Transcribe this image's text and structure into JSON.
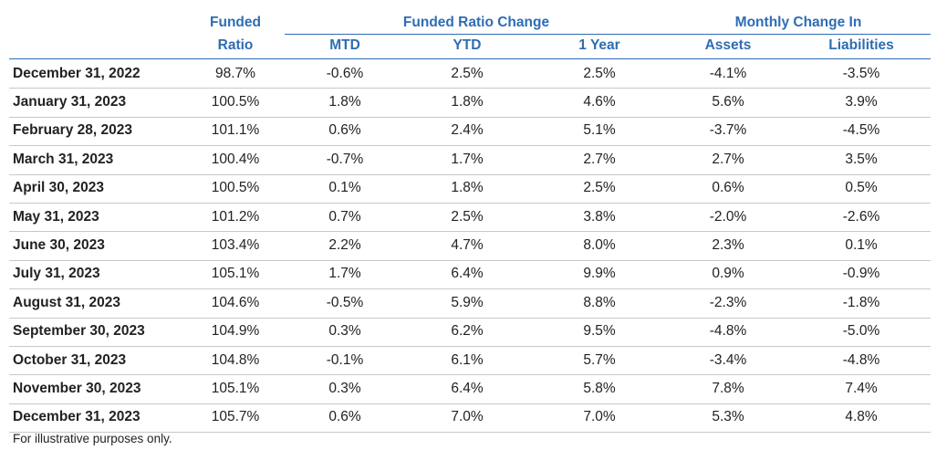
{
  "header": {
    "top": [
      "Funded",
      "Funded Ratio Change",
      "Monthly Change In"
    ],
    "sub": [
      "Ratio",
      "MTD",
      "YTD",
      "1 Year",
      "Assets",
      "Liabilities"
    ]
  },
  "table": {
    "rows": [
      [
        "December 31, 2022",
        "98.7%",
        "-0.6%",
        "2.5%",
        "2.5%",
        "-4.1%",
        "-3.5%"
      ],
      [
        "January 31, 2023",
        "100.5%",
        "1.8%",
        "1.8%",
        "4.6%",
        "5.6%",
        "3.9%"
      ],
      [
        "February 28, 2023",
        "101.1%",
        "0.6%",
        "2.4%",
        "5.1%",
        "-3.7%",
        "-4.5%"
      ],
      [
        "March 31, 2023",
        "100.4%",
        "-0.7%",
        "1.7%",
        "2.7%",
        "2.7%",
        "3.5%"
      ],
      [
        "April 30, 2023",
        "100.5%",
        "0.1%",
        "1.8%",
        "2.5%",
        "0.6%",
        "0.5%"
      ],
      [
        "May 31, 2023",
        "101.2%",
        "0.7%",
        "2.5%",
        "3.8%",
        "-2.0%",
        "-2.6%"
      ],
      [
        "June 30, 2023",
        "103.4%",
        "2.2%",
        "4.7%",
        "8.0%",
        "2.3%",
        "0.1%"
      ],
      [
        "July 31, 2023",
        "105.1%",
        "1.7%",
        "6.4%",
        "9.9%",
        "0.9%",
        "-0.9%"
      ],
      [
        "August 31, 2023",
        "104.6%",
        "-0.5%",
        "5.9%",
        "8.8%",
        "-2.3%",
        "-1.8%"
      ],
      [
        "September 30, 2023",
        "104.9%",
        "0.3%",
        "6.2%",
        "9.5%",
        "-4.8%",
        "-5.0%"
      ],
      [
        "October 31, 2023",
        "104.8%",
        "-0.1%",
        "6.1%",
        "5.7%",
        "-3.4%",
        "-4.8%"
      ],
      [
        "November 30, 2023",
        "105.1%",
        "0.3%",
        "6.4%",
        "5.8%",
        "7.8%",
        "7.4%"
      ],
      [
        "December 31, 2023",
        "105.7%",
        "0.6%",
        "7.0%",
        "7.0%",
        "5.3%",
        "4.8%"
      ]
    ]
  },
  "footnote": "For illustrative purposes only."
}
